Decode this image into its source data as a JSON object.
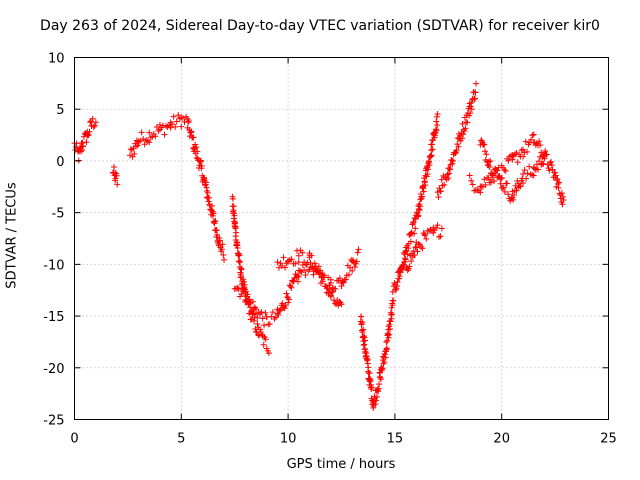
{
  "chart_data": {
    "type": "scatter",
    "title": "Day 263 of 2024, Sidereal Day-to-day VTEC variation (SDTVAR) for receiver kir0",
    "xlabel": "GPS time / hours",
    "ylabel": "SDTVAR / TECUs",
    "xlim": [
      0,
      25
    ],
    "ylim": [
      -25,
      10
    ],
    "xticks": [
      "0",
      "5",
      "10",
      "15",
      "20",
      "25"
    ],
    "yticks": [
      "-25",
      "-20",
      "-15",
      "-10",
      "-5",
      "0",
      "5",
      "10"
    ],
    "grid": true,
    "marker": "+",
    "series": [
      {
        "name": "kir0 SDTVAR",
        "color": "#ff0000",
        "segments": [
          {
            "x": [
              0.0,
              0.2,
              0.4,
              0.6,
              0.8,
              1.0
            ],
            "y": [
              1.5,
              0.5,
              1.8,
              2.5,
              3.5,
              4.0
            ]
          },
          {
            "x": [
              1.8,
              1.9,
              2.0
            ],
            "y": [
              -1.0,
              -1.5,
              -2.0
            ]
          },
          {
            "x": [
              2.6,
              3.0,
              3.5,
              4.0,
              4.5,
              5.0,
              5.3
            ],
            "y": [
              0.5,
              2.0,
              2.5,
              3.0,
              3.5,
              4.0,
              3.8
            ]
          },
          {
            "x": [
              5.3,
              5.6,
              5.9,
              6.2,
              6.5,
              6.8,
              7.0
            ],
            "y": [
              3.5,
              1.5,
              -0.5,
              -3.0,
              -5.5,
              -8.0,
              -9.0
            ]
          },
          {
            "x": [
              7.4,
              7.6,
              7.8,
              8.0,
              8.3,
              8.6,
              8.9,
              9.1
            ],
            "y": [
              -4.0,
              -8.0,
              -11.0,
              -13.0,
              -15.0,
              -16.5,
              -17.5,
              -18.0
            ]
          },
          {
            "x": [
              7.5,
              8.0,
              8.5,
              9.0,
              9.5,
              10.0,
              10.5,
              11.0,
              11.5,
              12.0,
              12.5,
              13.0,
              13.3
            ],
            "y": [
              -12.0,
              -13.0,
              -14.5,
              -15.5,
              -15.0,
              -13.0,
              -11.0,
              -10.0,
              -11.0,
              -12.0,
              -11.5,
              -10.0,
              -9.0
            ]
          },
          {
            "x": [
              9.5,
              10.0,
              10.5,
              11.0,
              11.5,
              12.0,
              12.5
            ],
            "y": [
              -10.0,
              -9.5,
              -9.2,
              -9.5,
              -11.0,
              -13.0,
              -14.5
            ]
          },
          {
            "x": [
              13.4,
              13.6,
              13.8,
              14.0,
              14.3,
              14.6,
              14.9
            ],
            "y": [
              -15.0,
              -18.0,
              -21.0,
              -23.5,
              -21.0,
              -18.0,
              -14.0
            ]
          },
          {
            "x": [
              14.9,
              15.2,
              15.5,
              15.8,
              16.1,
              16.4,
              16.7,
              17.0
            ],
            "y": [
              -13.0,
              -11.0,
              -9.0,
              -7.0,
              -5.0,
              -2.0,
              1.0,
              4.0
            ]
          },
          {
            "x": [
              15.2,
              15.6,
              16.0,
              16.4,
              16.8,
              17.2
            ],
            "y": [
              -11.0,
              -10.0,
              -8.5,
              -7.5,
              -7.0,
              -6.5
            ]
          },
          {
            "x": [
              17.0,
              17.5,
              18.0,
              18.5,
              18.8
            ],
            "y": [
              -3.0,
              -1.0,
              2.0,
              5.0,
              7.0
            ]
          },
          {
            "x": [
              19.0,
              19.5,
              20.0,
              20.5,
              21.0,
              21.5,
              22.0,
              22.5,
              22.9
            ],
            "y": [
              2.0,
              -0.5,
              -2.0,
              -3.5,
              -1.5,
              -1.0,
              0.5,
              -1.5,
              -4.0
            ]
          },
          {
            "x": [
              18.5,
              19.0,
              19.5,
              20.0,
              20.5,
              21.0,
              21.5,
              22.0
            ],
            "y": [
              -2.0,
              -2.5,
              -1.5,
              -1.0,
              0.0,
              1.0,
              2.0,
              0.5
            ]
          }
        ]
      }
    ]
  }
}
